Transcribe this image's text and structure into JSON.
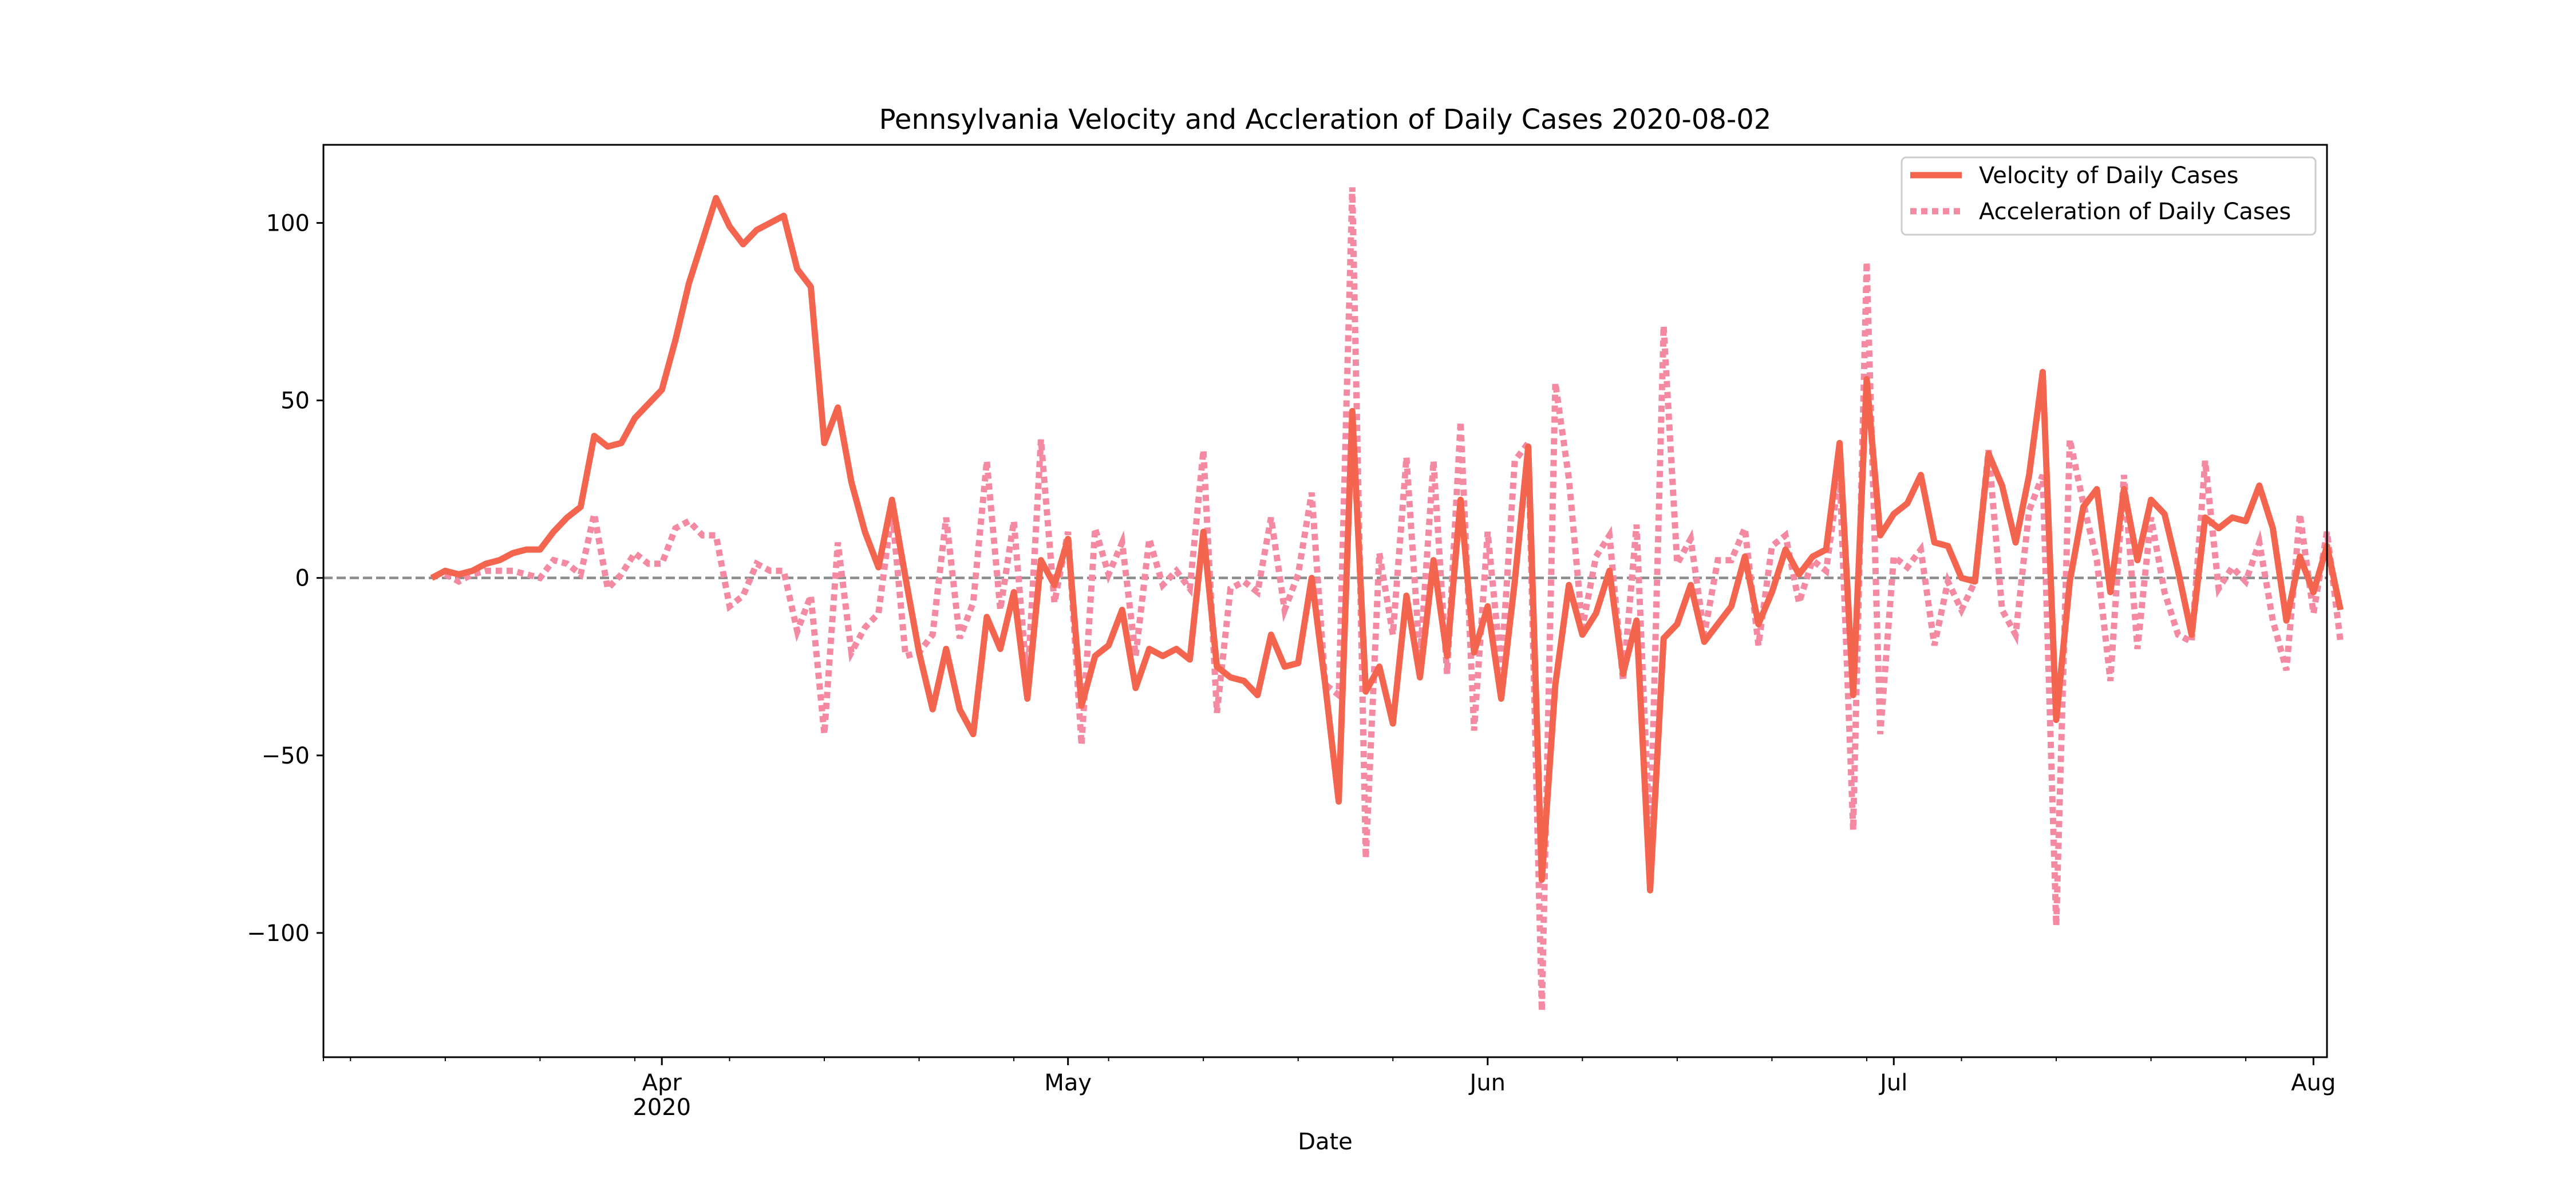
{
  "chart_data": {
    "type": "line",
    "title": "Pennsylvania Velocity and Accleration of Daily Cases 2020-08-02",
    "xlabel": "Date",
    "ylabel": "",
    "x_start": "2020-03-07",
    "x_end": "2020-08-02",
    "ylim": [
      -135,
      122
    ],
    "yticks": [
      100,
      50,
      0,
      -50,
      -100
    ],
    "ytick_labels": [
      "100",
      "50",
      "0",
      "−50",
      "−100"
    ],
    "xticks_major": [
      {
        "date": "2020-04-01",
        "label": "Apr",
        "sublabel": "2020"
      },
      {
        "date": "2020-05-01",
        "label": "May",
        "sublabel": ""
      },
      {
        "date": "2020-06-01",
        "label": "Jun",
        "sublabel": ""
      },
      {
        "date": "2020-07-01",
        "label": "Jul",
        "sublabel": ""
      },
      {
        "date": "2020-08-01",
        "label": "Aug",
        "sublabel": ""
      }
    ],
    "zero_line": true,
    "grid": false,
    "legend_position": "top-right",
    "series": [
      {
        "name": "Velocity of Daily Cases",
        "start_date": "2020-03-15",
        "color": "#f4654f",
        "style": "solid",
        "values": [
          0,
          2,
          1,
          2,
          4,
          5,
          7,
          8,
          8,
          13,
          17,
          20,
          40,
          37,
          38,
          45,
          49,
          53,
          67,
          83,
          95,
          107,
          99,
          94,
          98,
          100,
          102,
          87,
          82,
          38,
          48,
          27,
          13,
          3,
          22,
          0,
          -21,
          -37,
          -20,
          -37,
          -44,
          -11,
          -20,
          -4,
          -34,
          5,
          -2,
          11,
          -36,
          -22,
          -19,
          -9,
          -31,
          -20,
          -22,
          -20,
          -23,
          13,
          -25,
          -28,
          -29,
          -33,
          -16,
          -25,
          -24,
          0,
          -30,
          -63,
          47,
          -32,
          -25,
          -41,
          -5,
          -28,
          5,
          -22,
          22,
          -21,
          -8,
          -34,
          -1,
          37,
          -85,
          -30,
          -2,
          -16,
          -10,
          2,
          -27,
          -12,
          -88,
          -17,
          -13,
          -2,
          -18,
          -13,
          -8,
          6,
          -13,
          -4,
          8,
          1,
          6,
          8,
          38,
          -33,
          56,
          12,
          18,
          21,
          29,
          10,
          9,
          0,
          -1,
          35,
          26,
          10,
          29,
          58,
          -40,
          -1,
          20,
          25,
          -4,
          25,
          5,
          22,
          18,
          2,
          -16,
          17,
          14,
          17,
          16,
          26,
          14,
          -12,
          6,
          -4,
          9,
          -9
        ]
      },
      {
        "name": "Acceleration of Daily Cases",
        "start_date": "2020-03-16",
        "color": "#f48aa2",
        "style": "dotted",
        "values": [
          1,
          -1,
          1,
          2,
          2,
          2,
          1,
          0,
          5,
          4,
          1,
          18,
          -3,
          1,
          7,
          4,
          4,
          14,
          16,
          12,
          12,
          -8,
          -5,
          4,
          2,
          2,
          -15,
          -5,
          -44,
          10,
          -21,
          -14,
          -10,
          19,
          -22,
          -21,
          -16,
          17,
          -17,
          -7,
          33,
          -9,
          16,
          -30,
          39,
          -7,
          13,
          -47,
          14,
          1,
          10,
          -22,
          11,
          -2,
          2,
          -3,
          36,
          -38,
          -3,
          -1,
          -4,
          17,
          -9,
          1,
          24,
          -30,
          -33,
          110,
          -79,
          7,
          -16,
          34,
          -23,
          33,
          -27,
          44,
          -43,
          13,
          -26,
          33,
          38,
          -122,
          55,
          28,
          -14,
          6,
          12,
          -29,
          15,
          -76,
          71,
          4,
          11,
          -16,
          5,
          5,
          14,
          -19,
          9,
          12,
          -7,
          5,
          2,
          30,
          -71,
          89,
          -44,
          6,
          3,
          8,
          -19,
          -1,
          -9,
          -1,
          36,
          -9,
          -16,
          19,
          29,
          -98,
          39,
          21,
          5,
          -29,
          29,
          -20,
          17,
          -4,
          -16,
          -18,
          33,
          -3,
          3,
          -1,
          10,
          -12,
          -26,
          18,
          -10,
          13,
          -18
        ]
      }
    ]
  }
}
